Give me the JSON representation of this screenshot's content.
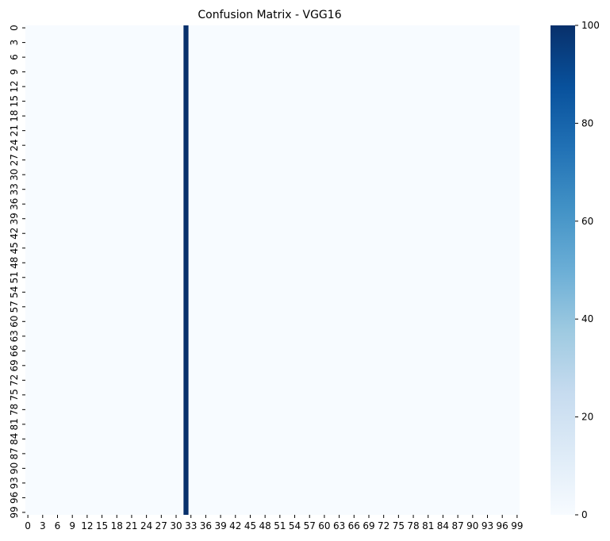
{
  "chart_data": {
    "type": "heatmap",
    "title": "Confusion Matrix - VGG16",
    "xlabel": "",
    "ylabel": "",
    "n_classes": 100,
    "tick_step": 3,
    "x_tick_labels": [
      "0",
      "3",
      "6",
      "9",
      "12",
      "15",
      "18",
      "21",
      "24",
      "27",
      "30",
      "33",
      "36",
      "39",
      "42",
      "45",
      "48",
      "51",
      "54",
      "57",
      "60",
      "63",
      "66",
      "69",
      "72",
      "75",
      "78",
      "81",
      "84",
      "87",
      "90",
      "93",
      "96",
      "99"
    ],
    "y_tick_labels": [
      "0",
      "3",
      "6",
      "9",
      "12",
      "15",
      "18",
      "21",
      "24",
      "27",
      "30",
      "33",
      "36",
      "39",
      "42",
      "45",
      "48",
      "51",
      "54",
      "57",
      "60",
      "63",
      "66",
      "69",
      "72",
      "75",
      "78",
      "81",
      "84",
      "87",
      "90",
      "93",
      "96",
      "99"
    ],
    "predicted_column": 32,
    "value_in_predicted_column": 100,
    "value_elsewhere": 0,
    "colormap": "Blues",
    "colorbar": {
      "range": [
        0,
        100
      ],
      "ticks": [
        0,
        20,
        40,
        60,
        80,
        100
      ],
      "tick_labels": [
        "0",
        "20",
        "40",
        "60",
        "80",
        "100"
      ]
    },
    "colors": {
      "low": "#f7fbff",
      "high": "#08306b"
    }
  }
}
